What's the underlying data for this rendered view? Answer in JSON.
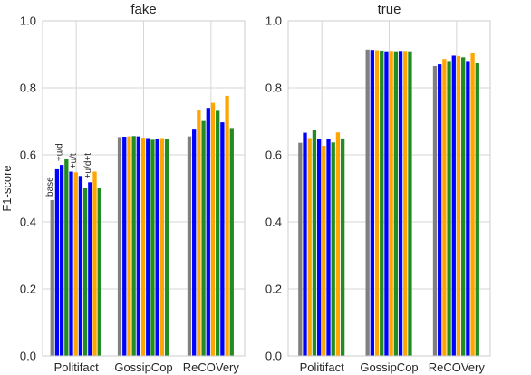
{
  "figure": {
    "ylabel": "F1-score"
  },
  "colors": {
    "base": "#808080",
    "ud": "#0000ff",
    "ut": "#ffa500",
    "udt": "#228b22"
  },
  "chart_data": [
    {
      "type": "bar",
      "title": "fake",
      "categories": [
        "Politifact",
        "GossipCop",
        "ReCOVery"
      ],
      "ylim": [
        0,
        1
      ],
      "yticks": [
        "0.0",
        "0.2",
        "0.4",
        "0.6",
        "0.8",
        "1.0"
      ],
      "grid": true,
      "bar_labels": [
        "base",
        "+u/d",
        "+u/t",
        "+u/d+t"
      ],
      "groups": [
        [
          0.465
        ],
        [
          0.557,
          0.57,
          0.587,
          0.55
        ],
        [
          0.548,
          0.537,
          0.5
        ],
        [
          0.518,
          0.55,
          0.5
        ]
      ],
      "values": [
        [
          0.465,
          0.557,
          0.57,
          0.587,
          0.55,
          0.548,
          0.537,
          0.5,
          0.518,
          0.55,
          0.5
        ],
        [
          0.653,
          0.654,
          0.655,
          0.656,
          0.655,
          0.651,
          0.65,
          0.645,
          0.648,
          0.65,
          0.648
        ],
        [
          0.655,
          0.678,
          0.735,
          0.701,
          0.74,
          0.755,
          0.734,
          0.697,
          0.776,
          0.68
        ]
      ]
    },
    {
      "type": "bar",
      "title": "true",
      "categories": [
        "Politifact",
        "GossipCop",
        "ReCOVery"
      ],
      "ylim": [
        0,
        1
      ],
      "yticks": [
        "0.0",
        "0.2",
        "0.4",
        "0.6",
        "0.8",
        "1.0"
      ],
      "grid": true,
      "values": [
        [
          0.636,
          0.666,
          0.65,
          0.675,
          0.648,
          0.627,
          0.648,
          0.637,
          0.667,
          0.649
        ],
        [
          0.914,
          0.913,
          0.912,
          0.911,
          0.909,
          0.91,
          0.909,
          0.91,
          0.91,
          0.909
        ],
        [
          0.865,
          0.87,
          0.886,
          0.88,
          0.896,
          0.895,
          0.891,
          0.88,
          0.905,
          0.874
        ]
      ]
    }
  ]
}
